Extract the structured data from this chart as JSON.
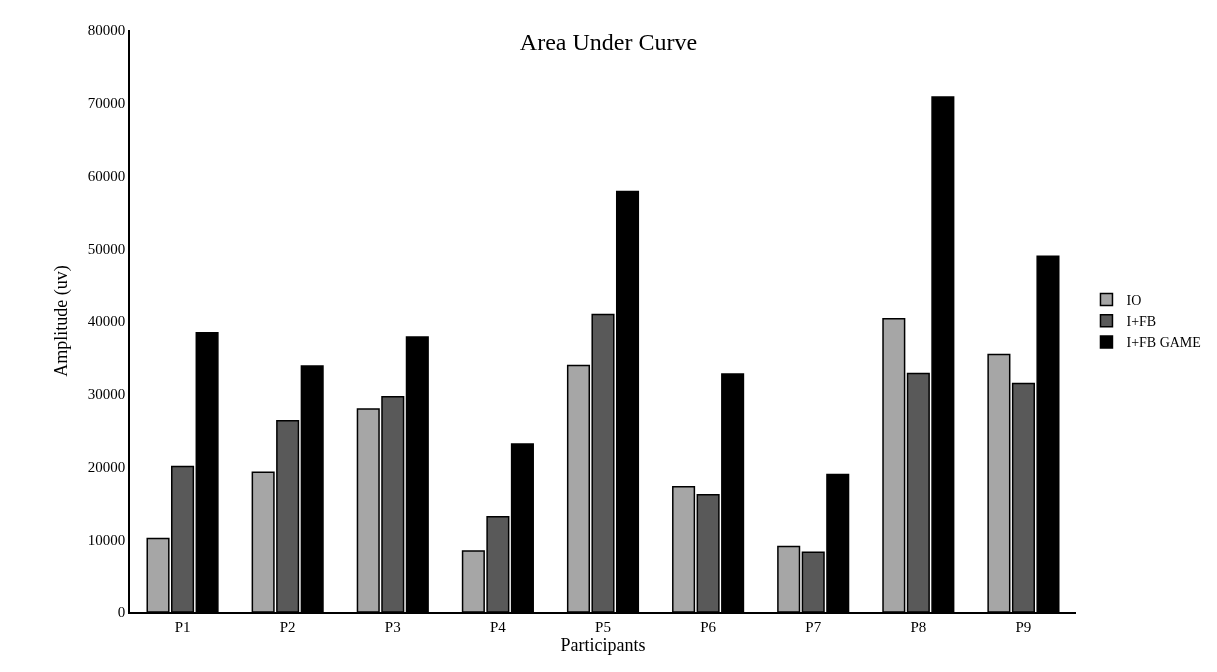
{
  "chart_data": {
    "type": "bar",
    "title": "Area Under Curve",
    "xlabel": "Participants",
    "ylabel": "Amplitude (uv)",
    "categories": [
      "P1",
      "P2",
      "P3",
      "P4",
      "P5",
      "P6",
      "P7",
      "P8",
      "P9"
    ],
    "series": [
      {
        "name": "IO",
        "color": "#a6a6a6",
        "values": [
          10100,
          19200,
          27900,
          8400,
          33900,
          17200,
          9000,
          40300,
          35400
        ]
      },
      {
        "name": "I+FB",
        "color": "#595959",
        "values": [
          20000,
          26300,
          29600,
          13100,
          40900,
          16100,
          8200,
          32800,
          31400
        ]
      },
      {
        "name": "I+FB GAME",
        "color": "#000000",
        "values": [
          38400,
          33800,
          37800,
          23100,
          57800,
          32700,
          18900,
          70800,
          48900
        ]
      }
    ],
    "ylim": [
      0,
      80000
    ],
    "yticks": [
      0,
      10000,
      20000,
      30000,
      40000,
      50000,
      60000,
      70000,
      80000
    ],
    "grid": false,
    "legend": "right"
  }
}
